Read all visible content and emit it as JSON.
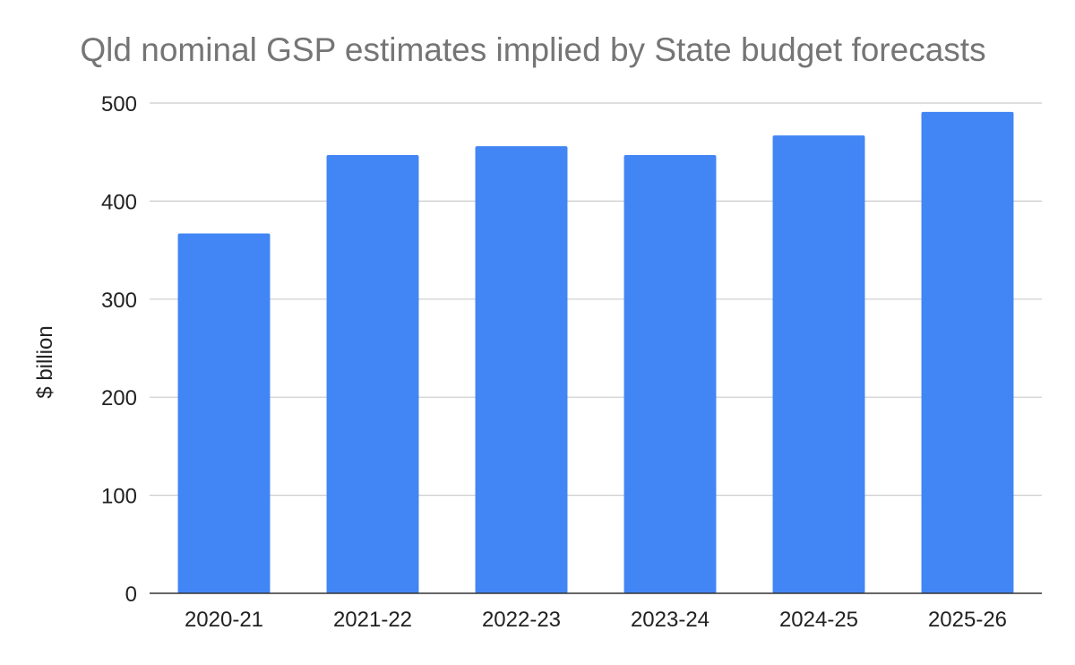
{
  "chart_data": {
    "type": "bar",
    "title": "Qld nominal GSP estimates implied by State budget forecasts",
    "xlabel": "",
    "ylabel": "$ billion",
    "categories": [
      "2020-21",
      "2021-22",
      "2022-23",
      "2023-24",
      "2024-25",
      "2025-26"
    ],
    "series": [
      {
        "values": [
          367,
          447,
          456,
          447,
          467,
          491
        ]
      }
    ],
    "ylim": [
      0,
      500
    ],
    "yticks": [
      0,
      100,
      200,
      300,
      400,
      500
    ],
    "ytick_labels": [
      "0",
      "100",
      "200",
      "300",
      "400",
      "500"
    ],
    "grid": true,
    "legend": "none",
    "colors": {
      "bar": "#4285f4",
      "title": "#757575",
      "grid": "#cccccc",
      "baseline": "#333333"
    }
  }
}
